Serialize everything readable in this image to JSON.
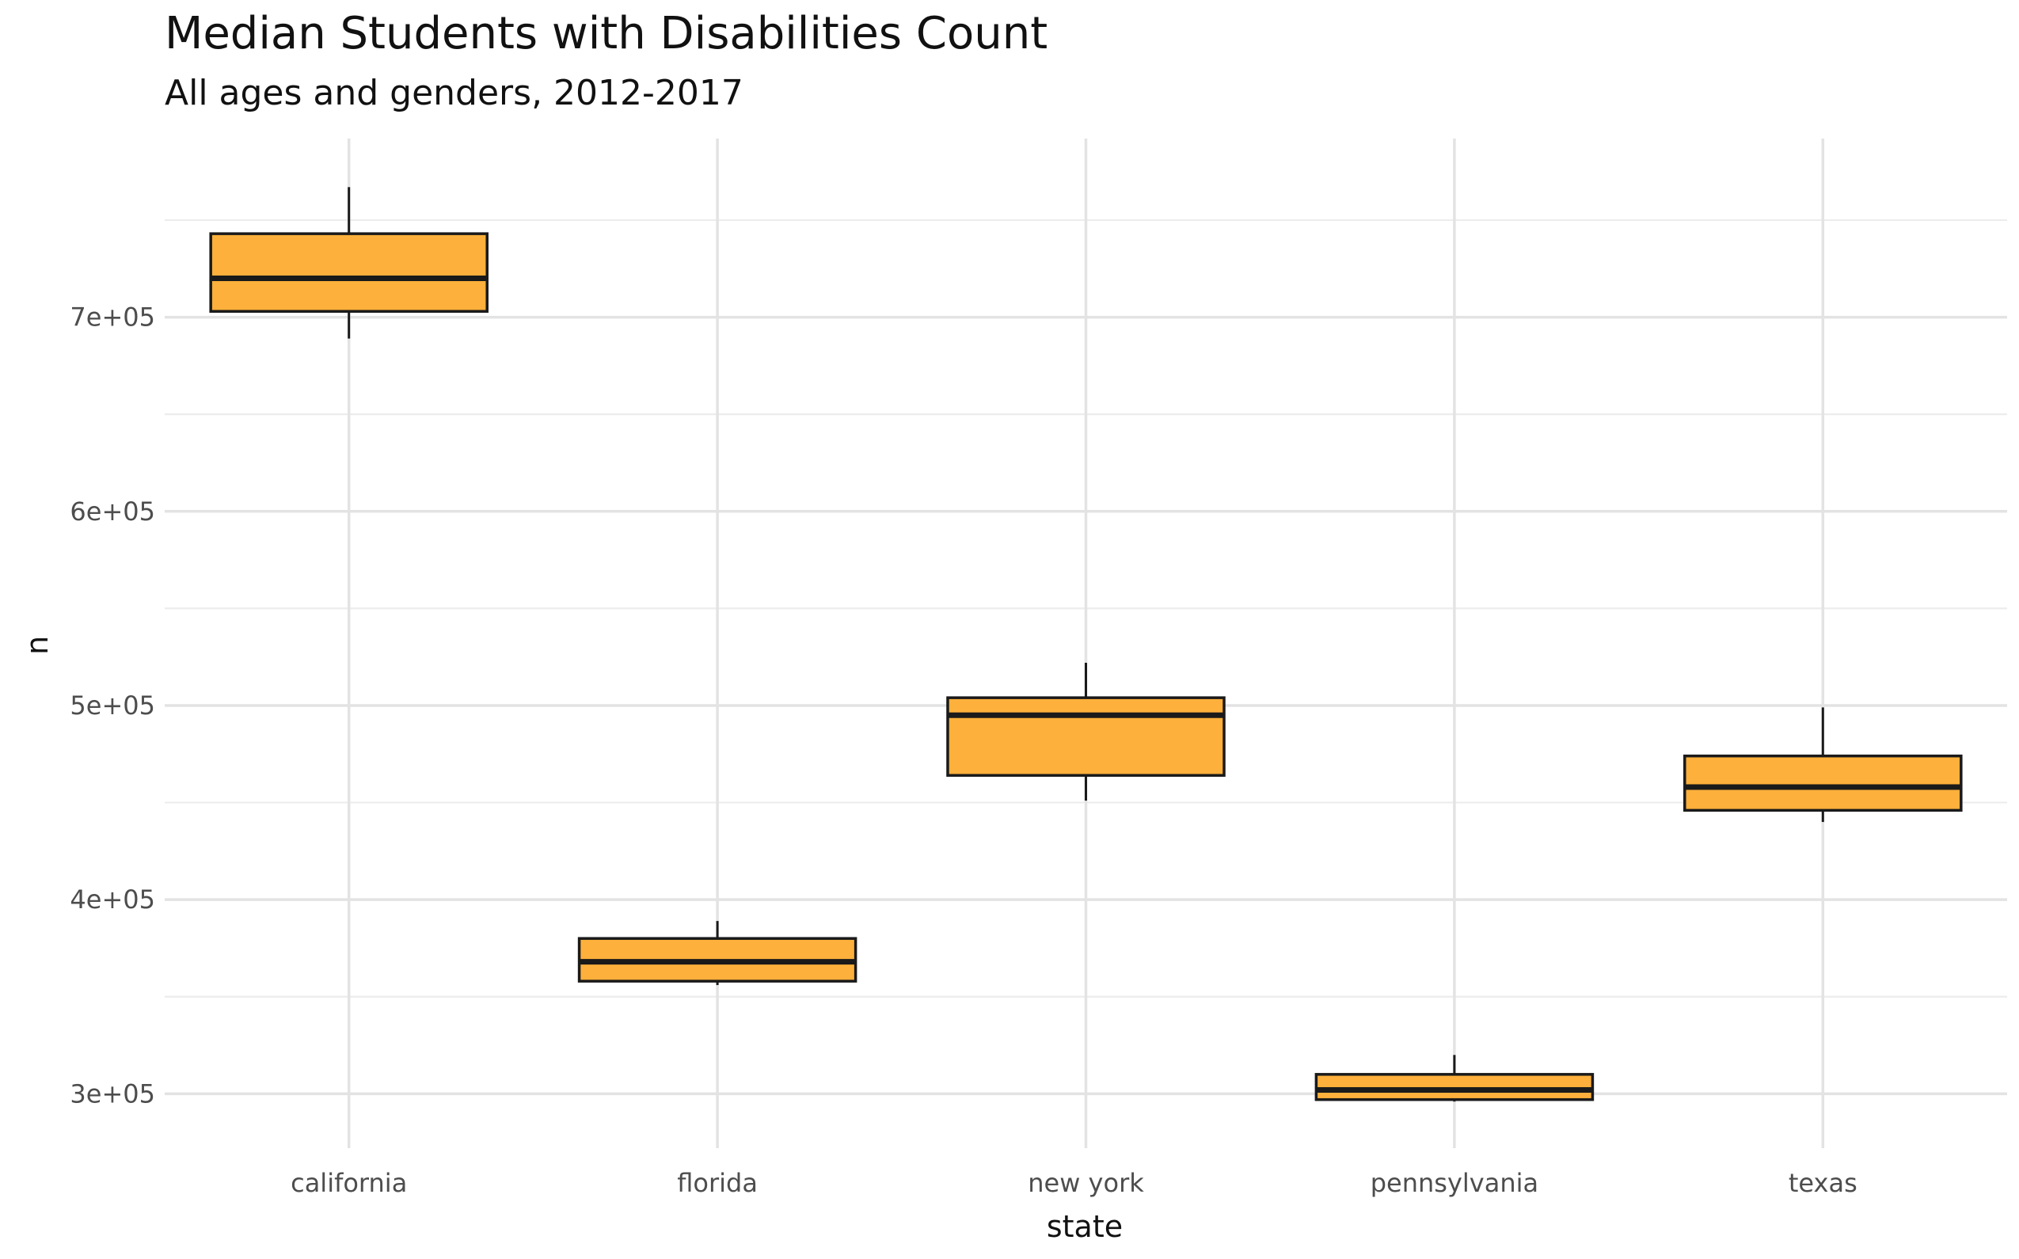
{
  "chart_data": {
    "type": "boxplot",
    "title": "Median Students with Disabilities Count",
    "subtitle": "All ages and genders, 2012-2017",
    "xlabel": "state",
    "ylabel": "n",
    "ylim": [
      272000,
      792000
    ],
    "yticks": [
      {
        "value": 300000,
        "label": "3e+05"
      },
      {
        "value": 400000,
        "label": "4e+05"
      },
      {
        "value": 500000,
        "label": "5e+05"
      },
      {
        "value": 600000,
        "label": "6e+05"
      },
      {
        "value": 700000,
        "label": "7e+05"
      }
    ],
    "fill_color": "#FDB03B",
    "line_color": "#1a1a1a",
    "grid": true,
    "legend": "none",
    "categories": [
      "california",
      "florida",
      "new york",
      "pennsylvania",
      "texas"
    ],
    "boxes": [
      {
        "category": "california",
        "min": 689000,
        "q1": 703000,
        "median": 720000,
        "q3": 743000,
        "max": 767000
      },
      {
        "category": "florida",
        "min": 356000,
        "q1": 358000,
        "median": 368000,
        "q3": 380000,
        "max": 389000
      },
      {
        "category": "new york",
        "min": 451000,
        "q1": 464000,
        "median": 495000,
        "q3": 504000,
        "max": 522000
      },
      {
        "category": "pennsylvania",
        "min": 296000,
        "q1": 297000,
        "median": 302000,
        "q3": 310000,
        "max": 320000
      },
      {
        "category": "texas",
        "min": 440000,
        "q1": 446000,
        "median": 458000,
        "q3": 474000,
        "max": 499000
      }
    ]
  }
}
